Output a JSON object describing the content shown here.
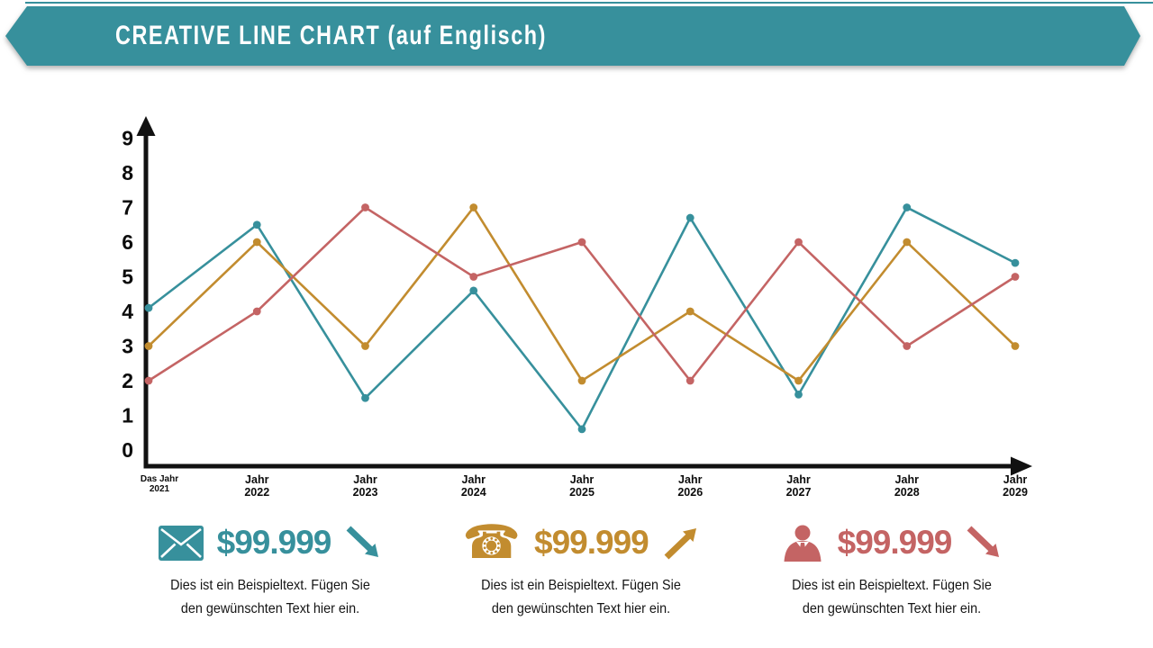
{
  "banner": {
    "title": "CREATIVE LINE CHART (auf Englisch)"
  },
  "colors": {
    "accent_teal": "#37909c",
    "accent_gold": "#c28c2f",
    "accent_red": "#c46464",
    "axis": "#0c0c0c"
  },
  "chart_data": {
    "type": "line",
    "title": "",
    "xlabel": "",
    "ylabel": "",
    "grid": false,
    "legend_position": "bottom",
    "ylim": [
      0,
      9
    ],
    "y_ticks": [
      "0",
      "1",
      "2",
      "3",
      "4",
      "5",
      "6",
      "7",
      "8",
      "9"
    ],
    "x_labels": [
      [
        "Das Jahr",
        "2021"
      ],
      [
        "Jahr",
        "2022"
      ],
      [
        "Jahr",
        "2023"
      ],
      [
        "Jahr",
        "2024"
      ],
      [
        "Jahr",
        "2025"
      ],
      [
        "Jahr",
        "2026"
      ],
      [
        "Jahr",
        "2027"
      ],
      [
        "Jahr",
        "2028"
      ],
      [
        "Jahr",
        "2029"
      ]
    ],
    "series": [
      {
        "name": "teal-series",
        "color": "#37909c",
        "values": [
          4.1,
          6.5,
          1.5,
          4.6,
          0.6,
          6.7,
          1.6,
          7,
          5.4
        ]
      },
      {
        "name": "gold-series",
        "color": "#c28c2f",
        "values": [
          3,
          6,
          3,
          7,
          2,
          4,
          2,
          6,
          3
        ]
      },
      {
        "name": "red-series",
        "color": "#c46464",
        "values": [
          2,
          4,
          7,
          5,
          6,
          2,
          6,
          3,
          5
        ]
      }
    ]
  },
  "legend": {
    "items": [
      {
        "icon": "envelope-icon",
        "value": "$99.999",
        "trend": "down",
        "color": "#37909c",
        "description_line1": "Dies ist ein Beispieltext. Fügen Sie",
        "description_line2": "den gewünschten Text hier ein."
      },
      {
        "icon": "telephone-icon",
        "value": "$99.999",
        "trend": "up",
        "color": "#c28c2f",
        "description_line1": "Dies ist ein Beispieltext. Fügen Sie",
        "description_line2": "den gewünschten Text hier ein."
      },
      {
        "icon": "businessman-icon",
        "value": "$99.999",
        "trend": "down",
        "color": "#c46464",
        "description_line1": "Dies ist ein Beispieltext. Fügen Sie",
        "description_line2": "den gewünschten Text hier ein."
      }
    ]
  }
}
